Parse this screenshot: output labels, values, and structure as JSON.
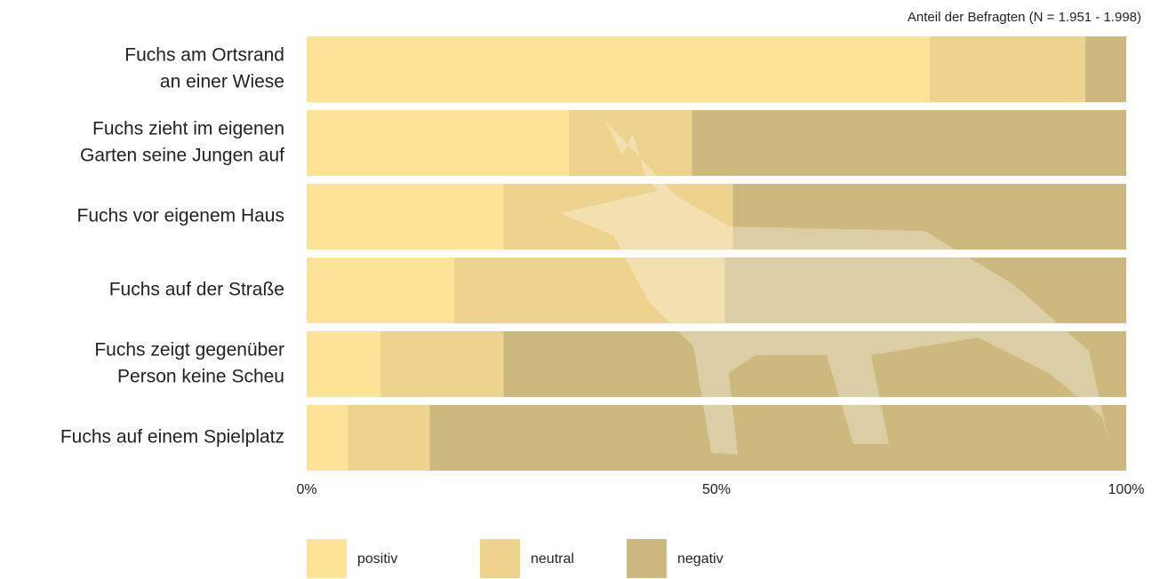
{
  "chart_data": {
    "type": "stacked-bar-horizontal",
    "annotation": "Anteil der Befragten (N = 1.951 - 1.998)",
    "categories": [
      [
        "Fuchs am Ortsrand",
        "an einer Wiese"
      ],
      [
        "Fuchs zieht im eigenen",
        "Garten seine Jungen auf"
      ],
      [
        "Fuchs vor eigenem Haus"
      ],
      [
        "Fuchs auf der Straße"
      ],
      [
        "Fuchs zeigt gegenüber",
        "Person keine Scheu"
      ],
      [
        "Fuchs auf einem Spielplatz"
      ]
    ],
    "series": [
      {
        "name": "positiv",
        "color": "#fde398",
        "values": [
          76,
          32,
          24,
          18,
          9,
          5
        ]
      },
      {
        "name": "neutral",
        "color": "#eed38e",
        "values": [
          19,
          15,
          28,
          33,
          15,
          10
        ]
      },
      {
        "name": "negativ",
        "color": "#cdb97d",
        "values": [
          5,
          53,
          48,
          49,
          76,
          85
        ]
      }
    ],
    "xlim": [
      0,
      100
    ],
    "xticks": [
      {
        "value": 0,
        "label": "0%"
      },
      {
        "value": 50,
        "label": "50%"
      },
      {
        "value": 100,
        "label": "100%"
      }
    ],
    "legend": "bottom"
  }
}
